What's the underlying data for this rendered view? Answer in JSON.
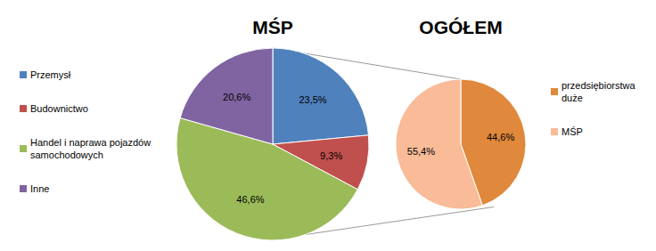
{
  "chart_data": [
    {
      "type": "pie",
      "title": "MŚP",
      "categories": [
        "Przemysł",
        "Budownictwo",
        "Handel i naprawa pojazdów samochodowych",
        "Inne"
      ],
      "values": [
        23.5,
        9.3,
        46.6,
        20.6
      ],
      "value_labels": [
        "23,5%",
        "9,3%",
        "46,6%",
        "20,6%"
      ],
      "colors": [
        "#4f81bd",
        "#c0504d",
        "#9bbb59",
        "#8064a2"
      ],
      "data_labels": true,
      "legend": "left"
    },
    {
      "type": "pie",
      "title": "OGÓŁEM",
      "categories": [
        "przedsiębiorstwa duże",
        "MŚP"
      ],
      "values": [
        44.6,
        55.4
      ],
      "value_labels": [
        "44,6%",
        "55,4%"
      ],
      "colors": [
        "#e0883b",
        "#f9bb98"
      ],
      "data_labels": true,
      "legend": "right"
    }
  ]
}
